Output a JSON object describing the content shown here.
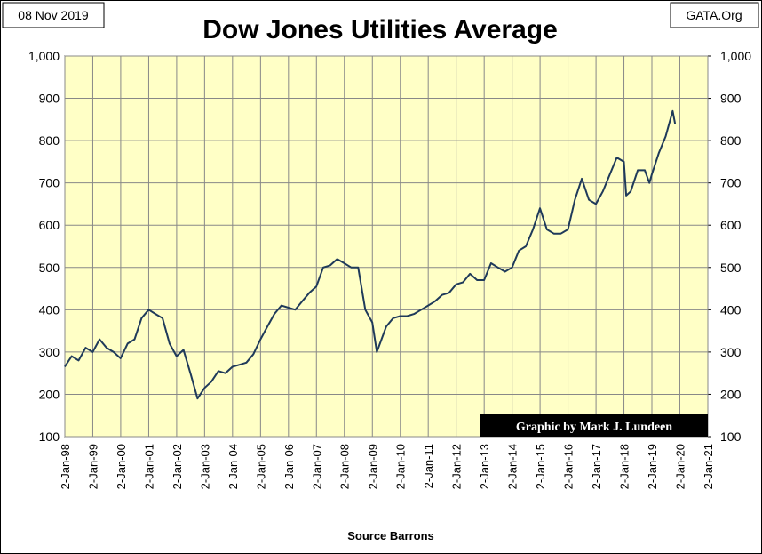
{
  "chart_data": {
    "type": "line",
    "title": "Dow Jones Utilities Average",
    "date_label": "08 Nov 2019",
    "source_label": "GATA.Org",
    "credit": "Graphic by Mark J. Lundeen",
    "xlabel": "Source Barrons",
    "x": [
      "1998-01",
      "1998-04",
      "1998-07",
      "1998-10",
      "1999-01",
      "1999-04",
      "1999-07",
      "1999-10",
      "2000-01",
      "2000-04",
      "2000-07",
      "2000-10",
      "2001-01",
      "2001-04",
      "2001-07",
      "2001-10",
      "2002-01",
      "2002-04",
      "2002-07",
      "2002-10",
      "2003-01",
      "2003-04",
      "2003-07",
      "2003-10",
      "2004-01",
      "2004-04",
      "2004-07",
      "2004-10",
      "2005-01",
      "2005-04",
      "2005-07",
      "2005-10",
      "2006-01",
      "2006-04",
      "2006-07",
      "2006-10",
      "2007-01",
      "2007-04",
      "2007-07",
      "2007-10",
      "2008-01",
      "2008-04",
      "2008-07",
      "2008-10",
      "2009-01",
      "2009-03",
      "2009-07",
      "2009-10",
      "2010-01",
      "2010-04",
      "2010-07",
      "2010-10",
      "2011-01",
      "2011-04",
      "2011-07",
      "2011-10",
      "2012-01",
      "2012-04",
      "2012-07",
      "2012-10",
      "2013-01",
      "2013-04",
      "2013-07",
      "2013-10",
      "2014-01",
      "2014-04",
      "2014-07",
      "2014-10",
      "2015-01",
      "2015-04",
      "2015-07",
      "2015-10",
      "2016-01",
      "2016-04",
      "2016-07",
      "2016-10",
      "2017-01",
      "2017-04",
      "2017-07",
      "2017-10",
      "2018-01",
      "2018-02",
      "2018-04",
      "2018-07",
      "2018-10",
      "2018-12",
      "2019-01",
      "2019-04",
      "2019-07",
      "2019-10",
      "2019-11"
    ],
    "series": [
      {
        "name": "Dow Jones Utilities Average",
        "color": "#1f3a5a",
        "values": [
          265,
          290,
          280,
          310,
          300,
          330,
          310,
          300,
          285,
          320,
          330,
          380,
          400,
          390,
          380,
          320,
          290,
          305,
          250,
          190,
          215,
          230,
          255,
          250,
          265,
          270,
          275,
          295,
          330,
          360,
          390,
          410,
          405,
          400,
          420,
          440,
          455,
          500,
          505,
          520,
          510,
          500,
          500,
          400,
          370,
          300,
          360,
          380,
          385,
          385,
          390,
          400,
          410,
          420,
          435,
          440,
          460,
          465,
          485,
          470,
          470,
          510,
          500,
          490,
          500,
          540,
          550,
          590,
          640,
          590,
          580,
          580,
          590,
          660,
          710,
          660,
          650,
          680,
          720,
          760,
          750,
          670,
          680,
          730,
          730,
          700,
          720,
          770,
          810,
          870,
          840
        ]
      }
    ],
    "xlim": [
      "1998-01-02",
      "2021-01-02"
    ],
    "xticks": [
      {
        "value": "1998-01-02",
        "label": "2-Jan-98"
      },
      {
        "value": "1999-01-02",
        "label": "2-Jan-99"
      },
      {
        "value": "2000-01-02",
        "label": "2-Jan-00"
      },
      {
        "value": "2001-01-02",
        "label": "2-Jan-01"
      },
      {
        "value": "2002-01-02",
        "label": "2-Jan-02"
      },
      {
        "value": "2003-01-02",
        "label": "2-Jan-03"
      },
      {
        "value": "2004-01-02",
        "label": "2-Jan-04"
      },
      {
        "value": "2005-01-02",
        "label": "2-Jan-05"
      },
      {
        "value": "2006-01-02",
        "label": "2-Jan-06"
      },
      {
        "value": "2007-01-02",
        "label": "2-Jan-07"
      },
      {
        "value": "2008-01-02",
        "label": "2-Jan-08"
      },
      {
        "value": "2009-01-02",
        "label": "2-Jan-09"
      },
      {
        "value": "2010-01-02",
        "label": "2-Jan-10"
      },
      {
        "value": "2011-01-02",
        "label": "2-Jan-11"
      },
      {
        "value": "2012-01-02",
        "label": "2-Jan-12"
      },
      {
        "value": "2013-01-02",
        "label": "2-Jan-13"
      },
      {
        "value": "2014-01-02",
        "label": "2-Jan-14"
      },
      {
        "value": "2015-01-02",
        "label": "2-Jan-15"
      },
      {
        "value": "2016-01-02",
        "label": "2-Jan-16"
      },
      {
        "value": "2017-01-02",
        "label": "2-Jan-17"
      },
      {
        "value": "2018-01-02",
        "label": "2-Jan-18"
      },
      {
        "value": "2019-01-02",
        "label": "2-Jan-19"
      },
      {
        "value": "2020-01-02",
        "label": "2-Jan-20"
      },
      {
        "value": "2021-01-02",
        "label": "2-Jan-21"
      }
    ],
    "ylim": [
      100,
      1000
    ],
    "yticks": [
      100,
      200,
      300,
      400,
      500,
      600,
      700,
      800,
      900,
      {
        "value": 1000,
        "label": "1,000"
      }
    ],
    "y2lim": [
      100,
      1000
    ],
    "y2ticks": [
      100,
      200,
      300,
      400,
      500,
      600,
      700,
      800,
      900,
      {
        "value": 1000,
        "label": "1,000"
      }
    ],
    "grid": true,
    "background": "#ffffc6"
  }
}
